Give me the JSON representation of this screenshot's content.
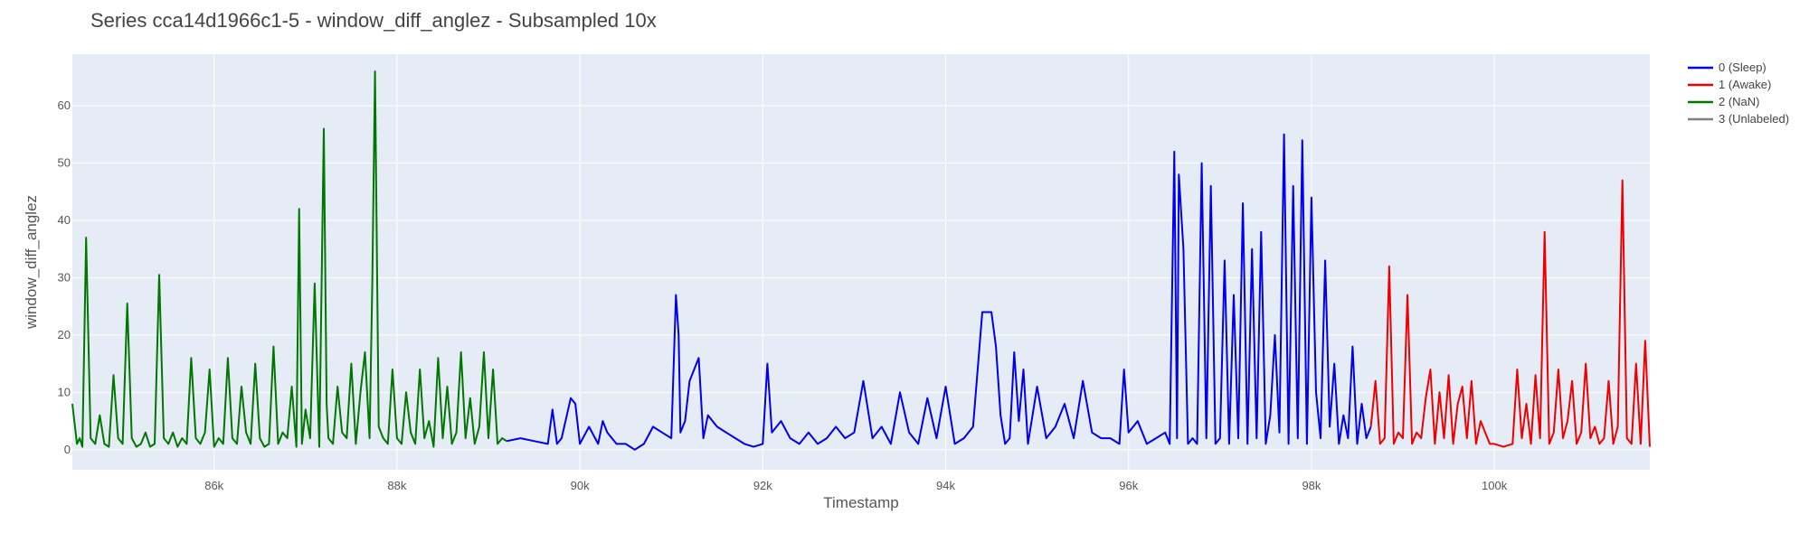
{
  "chart_data": {
    "type": "line",
    "title": "Series cca14d1966c1-5 - window_diff_anglez - Subsampled 10x",
    "xlabel": "Timestamp",
    "ylabel": "window_diff_anglez",
    "xlim": [
      84450,
      101700
    ],
    "ylim": [
      -3.5,
      69
    ],
    "xticks": [
      86000,
      88000,
      90000,
      92000,
      94000,
      96000,
      98000,
      100000
    ],
    "xtick_labels": [
      "86k",
      "88k",
      "90k",
      "92k",
      "94k",
      "96k",
      "98k",
      "100k"
    ],
    "yticks": [
      0,
      10,
      20,
      30,
      40,
      50,
      60
    ],
    "ytick_labels": [
      "0",
      "10",
      "20",
      "30",
      "40",
      "50",
      "60"
    ],
    "grid": true,
    "legend_position": "top-right",
    "legend": [
      {
        "name": "0 (Sleep)",
        "color": "#0000ee"
      },
      {
        "name": "1 (Awake)",
        "color": "#ee0000"
      },
      {
        "name": "2 (NaN)",
        "color": "#007700"
      },
      {
        "name": "3 (Unlabeled)",
        "color": "#808080"
      }
    ],
    "series": [
      {
        "name": "2 (NaN)",
        "color": "#007700",
        "x": [
          84450,
          84500,
          84530,
          84560,
          84600,
          84650,
          84700,
          84750,
          84800,
          84850,
          84900,
          84950,
          85000,
          85050,
          85100,
          85150,
          85200,
          85250,
          85300,
          85350,
          85400,
          85450,
          85500,
          85550,
          85600,
          85650,
          85700,
          85750,
          85800,
          85850,
          85900,
          85950,
          86000,
          86050,
          86100,
          86150,
          86200,
          86250,
          86300,
          86350,
          86400,
          86450,
          86500,
          86550,
          86600,
          86650,
          86700,
          86750,
          86800,
          86850,
          86900,
          86930,
          86960,
          87000,
          87050,
          87100,
          87150,
          87200,
          87230,
          87250,
          87300,
          87350,
          87400,
          87450,
          87500,
          87550,
          87600,
          87650,
          87700,
          87730,
          87760,
          87800,
          87850,
          87900,
          87950,
          88000,
          88050,
          88100,
          88150,
          88200,
          88250,
          88300,
          88350,
          88400,
          88450,
          88500,
          88550,
          88600,
          88650,
          88700,
          88750,
          88800,
          88850,
          88900,
          88950,
          89000,
          89050,
          89100,
          89150,
          89200
        ],
        "y": [
          8,
          1,
          2,
          0.5,
          37,
          2,
          1,
          6,
          1,
          0.5,
          13,
          2,
          1,
          25.5,
          2,
          0.5,
          1,
          3,
          0.5,
          1,
          30.5,
          2,
          1,
          3,
          0.5,
          2,
          1,
          16,
          2,
          1,
          3,
          14,
          0.5,
          2,
          1,
          16,
          2,
          1,
          11,
          3,
          1,
          15,
          2,
          0.5,
          1,
          18,
          1,
          3,
          2,
          11,
          0.5,
          42,
          1,
          7,
          2,
          29,
          0.5,
          56,
          8,
          2,
          1,
          11,
          3,
          2,
          15,
          1,
          10,
          17,
          2,
          29,
          66,
          4,
          2,
          1,
          14,
          2,
          1,
          10,
          3,
          1,
          14,
          2,
          5,
          0.5,
          16,
          2,
          11,
          1,
          3,
          17,
          2,
          9,
          1,
          4,
          17,
          2,
          14,
          1,
          2,
          1.5
        ]
      },
      {
        "name": "0 (Sleep)",
        "color": "#0000ee",
        "x": [
          89200,
          89350,
          89500,
          89650,
          89700,
          89750,
          89800,
          89900,
          89950,
          90000,
          90100,
          90200,
          90250,
          90300,
          90400,
          90500,
          90600,
          90700,
          90800,
          90900,
          91000,
          91050,
          91080,
          91100,
          91150,
          91200,
          91300,
          91350,
          91400,
          91500,
          91600,
          91700,
          91800,
          91900,
          92000,
          92050,
          92100,
          92200,
          92300,
          92400,
          92500,
          92600,
          92700,
          92800,
          92900,
          93000,
          93100,
          93200,
          93300,
          93400,
          93500,
          93600,
          93700,
          93800,
          93900,
          94000,
          94100,
          94200,
          94300,
          94400,
          94500,
          94550,
          94600,
          94650,
          94700,
          94750,
          94800,
          94850,
          94900,
          95000,
          95100,
          95200,
          95300,
          95400,
          95500,
          95600,
          95700,
          95800,
          95900,
          95950,
          96000,
          96100,
          96200,
          96300,
          96400,
          96450,
          96500,
          96530,
          96550,
          96600,
          96650,
          96700,
          96750,
          96800,
          96850,
          96900,
          96950,
          97000,
          97050,
          97100,
          97150,
          97200,
          97250,
          97300,
          97350,
          97400,
          97450,
          97500,
          97550,
          97600,
          97650,
          97700,
          97750,
          97800,
          97850,
          97900,
          97950,
          98000,
          98050,
          98100,
          98150,
          98200,
          98250,
          98300,
          98350,
          98400,
          98450,
          98500,
          98550,
          98600,
          98650
        ],
        "y": [
          1.5,
          2,
          1.5,
          1,
          7,
          1,
          2,
          9,
          8,
          1,
          4,
          1,
          5,
          3,
          1,
          1,
          0,
          1,
          4,
          3,
          2,
          27,
          20,
          3,
          5,
          12,
          16,
          2,
          6,
          4,
          3,
          2,
          1,
          0.5,
          1,
          15,
          3,
          5,
          2,
          1,
          3,
          1,
          2,
          4,
          2,
          3,
          12,
          2,
          4,
          1,
          10,
          3,
          1,
          9,
          2,
          11,
          1,
          2,
          4,
          24,
          24,
          18,
          6,
          1,
          2,
          17,
          5,
          14,
          1,
          11,
          2,
          4,
          8,
          2,
          12,
          3,
          2,
          2,
          1,
          14,
          3,
          5,
          1,
          2,
          3,
          1,
          52,
          2,
          48,
          35,
          1,
          2,
          1,
          50,
          2,
          46,
          1,
          2,
          33,
          1,
          27,
          2,
          43,
          1,
          35,
          2,
          38,
          1,
          6,
          20,
          3,
          55,
          1,
          46,
          2,
          54,
          1,
          44,
          10,
          2,
          33,
          4,
          15,
          1,
          6,
          2,
          18,
          1,
          8,
          2,
          4
        ]
      },
      {
        "name": "1 (Awake)",
        "color": "#ee0000",
        "x": [
          98650,
          98700,
          98750,
          98800,
          98850,
          98900,
          98950,
          99000,
          99050,
          99100,
          99150,
          99200,
          99250,
          99300,
          99350,
          99400,
          99450,
          99500,
          99550,
          99600,
          99650,
          99700,
          99750,
          99800,
          99850,
          99900,
          99950,
          100000,
          100100,
          100200,
          100250,
          100300,
          100350,
          100400,
          100450,
          100500,
          100550,
          100600,
          100650,
          100700,
          100750,
          100800,
          100850,
          100900,
          100950,
          101000,
          101050,
          101100,
          101150,
          101200,
          101250,
          101300,
          101350,
          101400,
          101450,
          101500,
          101550,
          101600,
          101650,
          101700
        ],
        "y": [
          4,
          12,
          1,
          2,
          32,
          1,
          3,
          2,
          27,
          1,
          3,
          2,
          9,
          14,
          1,
          10,
          2,
          13,
          1,
          8,
          11,
          2,
          12,
          1,
          5,
          3,
          1,
          1,
          0.5,
          1,
          14,
          2,
          8,
          1,
          13,
          2,
          38,
          1,
          3,
          14,
          2,
          5,
          12,
          1,
          3,
          15,
          2,
          4,
          1,
          2,
          12,
          1,
          4,
          47,
          2,
          1,
          15,
          1,
          19,
          0.5
        ]
      }
    ]
  }
}
